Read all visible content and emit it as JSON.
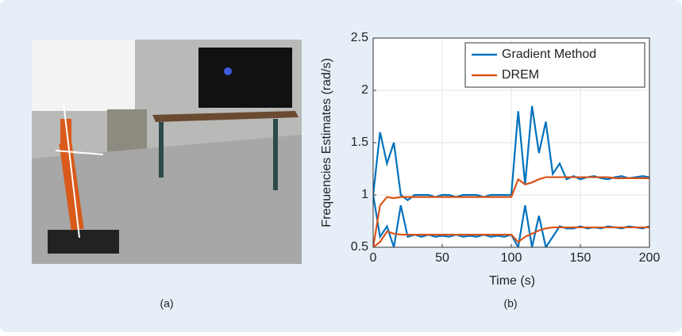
{
  "captions": [
    "(a)",
    "(b)"
  ],
  "chart_data": {
    "type": "line",
    "xlabel": "Time (s)",
    "ylabel": "Frequencies Estimates (rad/s)",
    "x": [
      0,
      5,
      10,
      15,
      20,
      25,
      30,
      35,
      40,
      45,
      50,
      55,
      60,
      65,
      70,
      75,
      80,
      85,
      90,
      95,
      100,
      105,
      110,
      115,
      120,
      125,
      130,
      135,
      140,
      145,
      150,
      155,
      160,
      165,
      170,
      175,
      180,
      185,
      190,
      195,
      200
    ],
    "series": [
      {
        "name": "Gradient Method",
        "color": "#0072bd",
        "values": [
          [
            1.0,
            1.6,
            1.3,
            1.5,
            1.0,
            0.95,
            1.0,
            1.0,
            1.0,
            0.98,
            1.0,
            1.0,
            0.98,
            1.0,
            1.0,
            1.0,
            0.98,
            1.0,
            1.0,
            1.0,
            1.0,
            1.8,
            1.1,
            1.85,
            1.4,
            1.7,
            1.2,
            1.3,
            1.15,
            1.18,
            1.15,
            1.17,
            1.18,
            1.16,
            1.15,
            1.17,
            1.18,
            1.16,
            1.17,
            1.18,
            1.17
          ],
          [
            1.0,
            0.6,
            0.7,
            0.5,
            0.9,
            0.6,
            0.62,
            0.6,
            0.62,
            0.6,
            0.61,
            0.6,
            0.62,
            0.6,
            0.61,
            0.6,
            0.62,
            0.6,
            0.61,
            0.6,
            0.62,
            0.5,
            0.9,
            0.5,
            0.8,
            0.5,
            0.6,
            0.7,
            0.68,
            0.68,
            0.7,
            0.68,
            0.69,
            0.68,
            0.7,
            0.69,
            0.68,
            0.7,
            0.69,
            0.68,
            0.7
          ]
        ]
      },
      {
        "name": "DREM",
        "color": "#d95319",
        "values": [
          [
            0.5,
            0.9,
            0.98,
            0.97,
            0.98,
            0.98,
            0.98,
            0.98,
            0.98,
            0.98,
            0.98,
            0.98,
            0.98,
            0.98,
            0.98,
            0.98,
            0.98,
            0.98,
            0.98,
            0.98,
            0.98,
            1.15,
            1.1,
            1.12,
            1.15,
            1.17,
            1.17,
            1.17,
            1.17,
            1.17,
            1.17,
            1.17,
            1.17,
            1.17,
            1.17,
            1.16,
            1.16,
            1.16,
            1.16,
            1.16,
            1.16
          ],
          [
            0.5,
            0.55,
            0.65,
            0.63,
            0.62,
            0.62,
            0.62,
            0.62,
            0.62,
            0.62,
            0.62,
            0.62,
            0.62,
            0.62,
            0.62,
            0.62,
            0.62,
            0.62,
            0.62,
            0.62,
            0.62,
            0.55,
            0.6,
            0.63,
            0.66,
            0.68,
            0.69,
            0.69,
            0.69,
            0.69,
            0.69,
            0.69,
            0.69,
            0.69,
            0.69,
            0.69,
            0.69,
            0.69,
            0.69,
            0.69,
            0.69
          ]
        ]
      }
    ],
    "xlim": [
      0,
      200
    ],
    "xticks": [
      0,
      50,
      100,
      150,
      200
    ],
    "ylim": [
      0.5,
      2.5
    ],
    "yticks": [
      0.5,
      1,
      1.5,
      2,
      2.5
    ],
    "grid": true,
    "legend": "upper right"
  }
}
